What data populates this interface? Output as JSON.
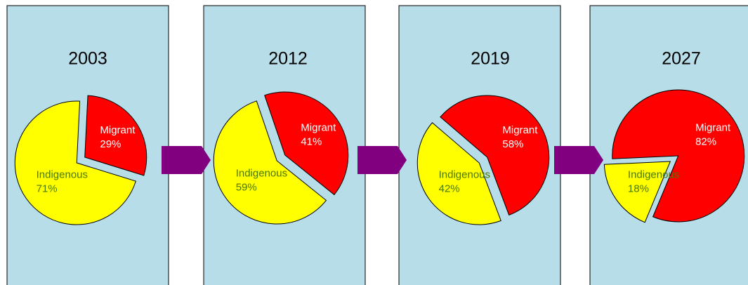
{
  "chart_data": [
    {
      "type": "pie",
      "title": "2003",
      "categories": [
        "Migrant",
        "Indigenous"
      ],
      "values": [
        29,
        71
      ],
      "value_labels": [
        "29%",
        "71%"
      ],
      "colors": [
        "#ff0000",
        "#ffff00"
      ]
    },
    {
      "type": "pie",
      "title": "2012",
      "categories": [
        "Migrant",
        "Indigenous"
      ],
      "values": [
        41,
        59
      ],
      "value_labels": [
        "41%",
        "59%"
      ],
      "colors": [
        "#ff0000",
        "#ffff00"
      ]
    },
    {
      "type": "pie",
      "title": "2019",
      "categories": [
        "Migrant",
        "Indigenous"
      ],
      "values": [
        58,
        42
      ],
      "value_labels": [
        "58%",
        "42%"
      ],
      "colors": [
        "#ff0000",
        "#ffff00"
      ]
    },
    {
      "type": "pie",
      "title": "2027",
      "categories": [
        "Migrant",
        "Indigenous"
      ],
      "values": [
        82,
        18
      ],
      "value_labels": [
        "82%",
        "18%"
      ],
      "colors": [
        "#ff0000",
        "#ffff00"
      ]
    }
  ]
}
